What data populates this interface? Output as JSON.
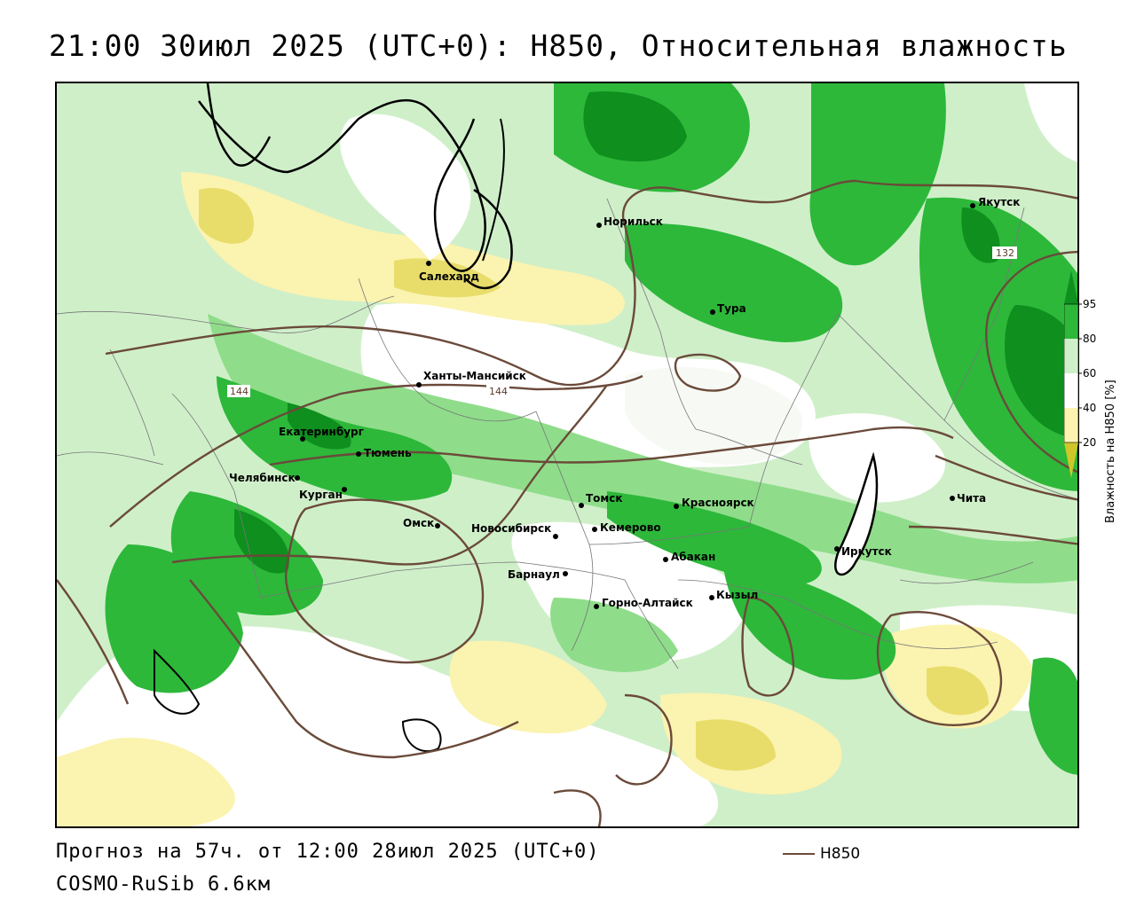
{
  "title": "21:00 30июл 2025 (UTC+0): H850, Относительная влажность",
  "footer": {
    "forecast": "Прогноз на 57ч. от 12:00 28июл 2025 (UTC+0)",
    "model": "COSMO-RuSib 6.6км"
  },
  "line_legend": {
    "label": "H850",
    "color": "#6b4a3a"
  },
  "colorbar": {
    "title": "Влажность на H850 [%]",
    "ticks": [
      "95",
      "80",
      "60",
      "40",
      "20"
    ],
    "colors": [
      "#0e8f1e",
      "#2db83a",
      "#8fdd8a",
      "#cfefc9",
      "#ffffff",
      "#fbf3b0",
      "#e8dd6a",
      "#cfc72a"
    ]
  },
  "cities": [
    {
      "name": "Норильск"
    },
    {
      "name": "Якутск"
    },
    {
      "name": "Салехард"
    },
    {
      "name": "Тура"
    },
    {
      "name": "Ханты-Мансийск"
    },
    {
      "name": "Екатеринбург"
    },
    {
      "name": "Тюмень"
    },
    {
      "name": "Челябинск"
    },
    {
      "name": "Курган"
    },
    {
      "name": "Омск"
    },
    {
      "name": "Новосибирск"
    },
    {
      "name": "Томск"
    },
    {
      "name": "Кемерово"
    },
    {
      "name": "Красноярск"
    },
    {
      "name": "Абакан"
    },
    {
      "name": "Барнаул"
    },
    {
      "name": "Горно-Алтайск"
    },
    {
      "name": "Кызыл"
    },
    {
      "name": "Иркутск"
    },
    {
      "name": "Чита"
    }
  ],
  "contour_labels": [
    "144",
    "144",
    "132"
  ]
}
